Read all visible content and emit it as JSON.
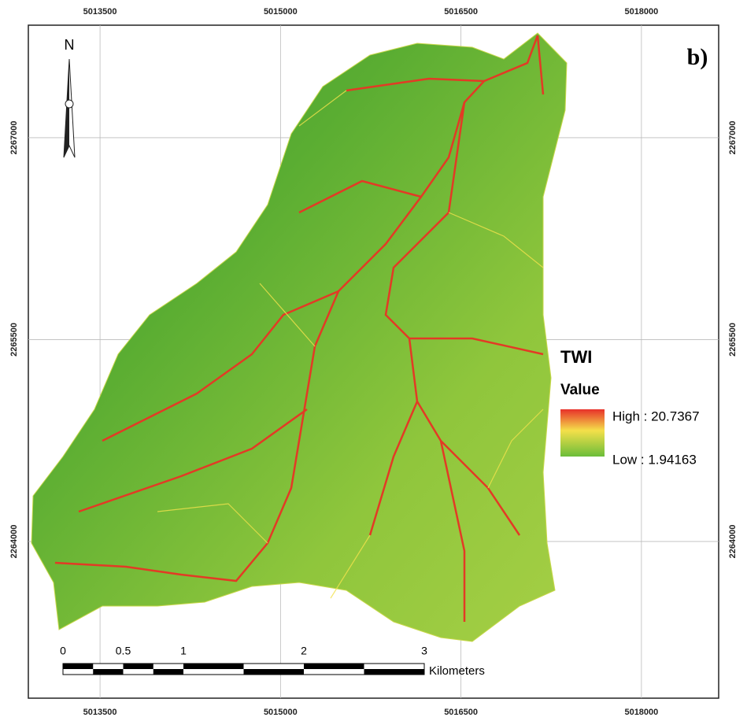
{
  "map": {
    "label": "b)",
    "north": "N",
    "xticks": [
      5013500,
      5015000,
      5016500,
      5018000
    ],
    "yticks": [
      2264000,
      2265500,
      2267000
    ],
    "xlim": [
      5012904,
      5018642
    ],
    "ylim": [
      2262836,
      2267836
    ],
    "legend": {
      "title": "TWI",
      "subtitle": "Value",
      "high": "High : 20.7367",
      "low": "Low : 1.94163"
    },
    "scale": {
      "ticks": [
        0,
        0.5,
        1,
        2,
        3
      ],
      "unit": "Kilometers"
    }
  }
}
